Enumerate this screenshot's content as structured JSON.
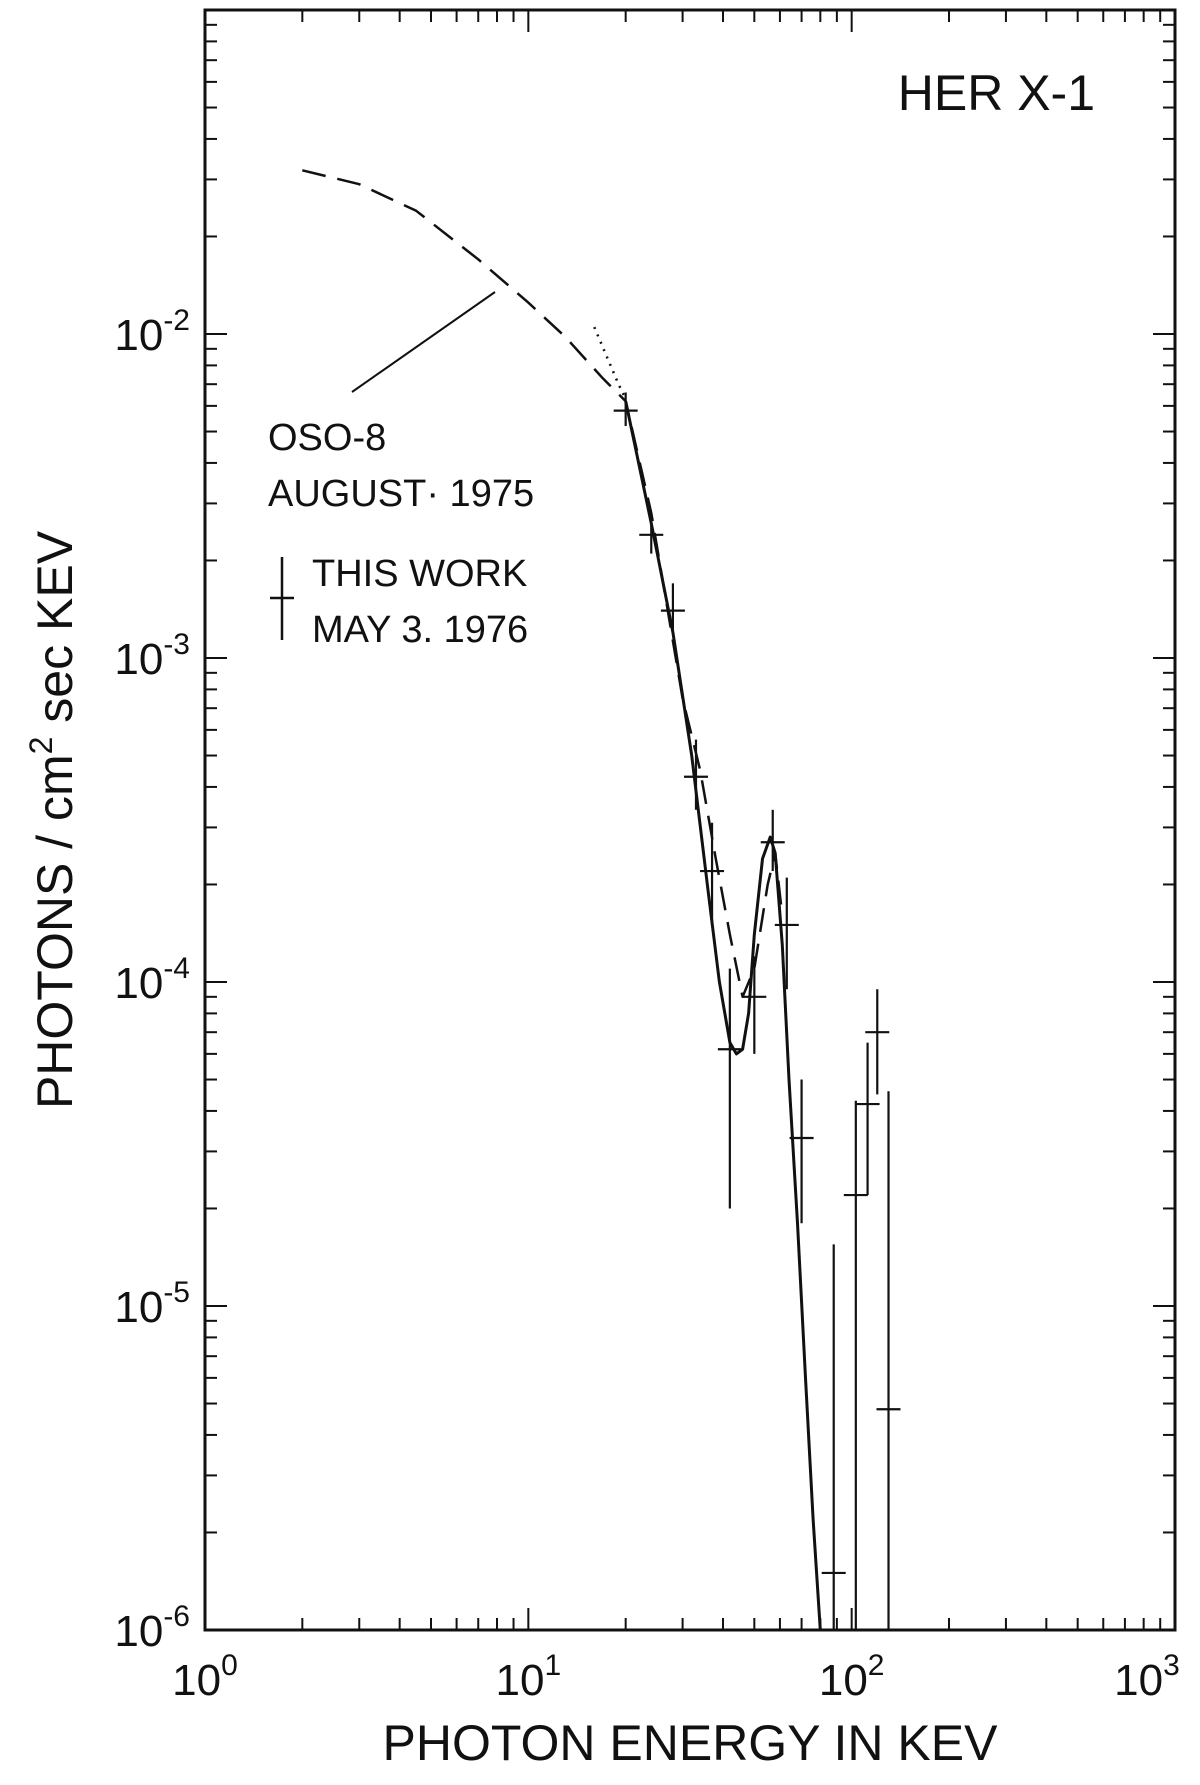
{
  "chart_data": {
    "type": "scatter",
    "title": "HER X-1",
    "xlabel": "PHOTON ENERGY IN KEV",
    "ylabel": "PHOTONS / cm² sec KEV",
    "ylabel_parts": {
      "pre": "PHOTONS / cm",
      "sup": "2",
      "post": " sec KEV"
    },
    "x_scale": "log",
    "y_scale": "log",
    "xlim": [
      1,
      1000
    ],
    "ylim": [
      1e-06,
      0.1
    ],
    "x_ticks": [
      {
        "base": "10",
        "exp": "0",
        "value": 1
      },
      {
        "base": "10",
        "exp": "1",
        "value": 10
      },
      {
        "base": "10",
        "exp": "2",
        "value": 100
      },
      {
        "base": "10",
        "exp": "3",
        "value": 1000
      }
    ],
    "y_ticks": [
      {
        "base": "10",
        "exp": "-2",
        "value": 0.01
      },
      {
        "base": "10",
        "exp": "-3",
        "value": 0.001
      },
      {
        "base": "10",
        "exp": "-4",
        "value": 0.0001
      },
      {
        "base": "10",
        "exp": "-5",
        "value": 1e-05
      },
      {
        "base": "10",
        "exp": "-6",
        "value": 1e-06
      }
    ],
    "annotations": {
      "oso_line1": "OSO-8",
      "oso_line2": "AUGUST· 1975",
      "this_line1": "THIS WORK",
      "this_line2": "MAY 3. 1976"
    },
    "series": [
      {
        "name": "OSO-8 AUGUST· 1975",
        "style": "dashed",
        "x": [
          2.0,
          3.0,
          4.5,
          7.0,
          10.0,
          13.0,
          17.0,
          20.0,
          24.0,
          30.0,
          34.0,
          38.0,
          42.0,
          46.0,
          50.0,
          55.0,
          58.0,
          61.0
        ],
        "y": [
          0.032,
          0.029,
          0.024,
          0.017,
          0.0125,
          0.0098,
          0.0073,
          0.0062,
          0.0028,
          0.00075,
          0.00045,
          0.00024,
          0.00014,
          9e-05,
          0.00011,
          0.0002,
          0.00025,
          0.00016
        ]
      },
      {
        "name": "extrapolation",
        "style": "dotted",
        "x": [
          16.0,
          17.5,
          19.0,
          20.0
        ],
        "y": [
          0.0105,
          0.0085,
          0.007,
          0.0063
        ]
      },
      {
        "name": "THIS WORK MAY 3. 1976 (fit)",
        "style": "solid",
        "x": [
          20.0,
          24.0,
          28.0,
          32.0,
          36.0,
          39.0,
          42.0,
          44.0,
          46.0,
          48.0,
          50.0,
          53.0,
          56.0,
          58.0,
          61.0,
          64.0,
          68.0,
          72.0,
          76.0,
          80.0
        ],
        "y": [
          0.0062,
          0.0026,
          0.0012,
          0.0005,
          0.00019,
          0.0001,
          6.5e-05,
          6e-05,
          6.2e-05,
          8e-05,
          0.00014,
          0.00024,
          0.00028,
          0.00025,
          0.00013,
          5e-05,
          1.8e-05,
          6e-06,
          2.2e-06,
          1e-06
        ]
      },
      {
        "name": "THIS WORK MAY 3. 1976",
        "style": "errorbar",
        "points": [
          {
            "x": 20,
            "y": 0.0058,
            "ylo": 0.0052,
            "yhi": 0.0066
          },
          {
            "x": 24,
            "y": 0.0024,
            "ylo": 0.0021,
            "yhi": 0.0028
          },
          {
            "x": 28,
            "y": 0.0014,
            "ylo": 0.0012,
            "yhi": 0.0017
          },
          {
            "x": 33,
            "y": 0.00043,
            "ylo": 0.00034,
            "yhi": 0.00056
          },
          {
            "x": 37,
            "y": 0.00022,
            "ylo": 0.00015,
            "yhi": 0.00031
          },
          {
            "x": 42,
            "y": 6.2e-05,
            "ylo": 2e-05,
            "yhi": 0.00011
          },
          {
            "x": 50,
            "y": 9e-05,
            "ylo": 6e-05,
            "yhi": 0.00012
          },
          {
            "x": 57,
            "y": 0.00027,
            "ylo": 0.00022,
            "yhi": 0.00034
          },
          {
            "x": 63,
            "y": 0.00015,
            "ylo": 9.5e-05,
            "yhi": 0.00021
          },
          {
            "x": 70,
            "y": 3.3e-05,
            "ylo": 1.8e-05,
            "yhi": 5e-05
          },
          {
            "x": 88,
            "y": 1.5e-06,
            "ylo": 1e-06,
            "yhi": 1.55e-05
          },
          {
            "x": 103,
            "y": 2.2e-05,
            "ylo": 1e-06,
            "yhi": 4.3e-05
          },
          {
            "x": 112,
            "y": 4.2e-05,
            "ylo": 2.2e-05,
            "yhi": 6.5e-05
          },
          {
            "x": 120,
            "y": 7e-05,
            "ylo": 4.5e-05,
            "yhi": 9.5e-05
          },
          {
            "x": 130,
            "y": 4.8e-06,
            "ylo": 1e-06,
            "yhi": 4.6e-05
          }
        ]
      }
    ]
  }
}
